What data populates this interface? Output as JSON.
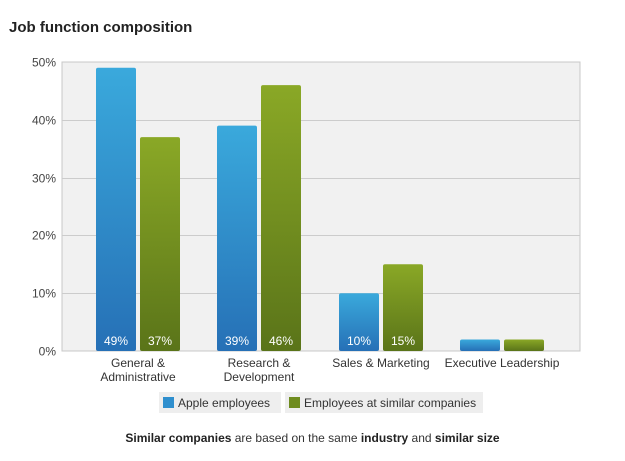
{
  "page_title": "Job function composition",
  "colors": {
    "apple_series": "#2f8fce",
    "similar_series": "#6f8c1f",
    "plot_background": "#f1f1f1",
    "grid": "#cccccc",
    "legend_background": "#eeeeee"
  },
  "chart_data": {
    "type": "bar",
    "title": "Job function composition",
    "categories": [
      [
        "General &",
        "Administrative"
      ],
      [
        "Research &",
        "Development"
      ],
      [
        "Sales & Marketing"
      ],
      [
        "Executive Leadership"
      ]
    ],
    "series": [
      {
        "name": "Apple employees",
        "values": [
          49,
          39,
          10,
          2
        ],
        "data_labels": [
          "49%",
          "39%",
          "10%",
          ""
        ]
      },
      {
        "name": "Employees at similar companies",
        "values": [
          37,
          46,
          15,
          2
        ],
        "data_labels": [
          "37%",
          "46%",
          "15%",
          ""
        ]
      }
    ],
    "y_ticks": [
      "0%",
      "10%",
      "20%",
      "30%",
      "40%",
      "50%"
    ],
    "y_tick_values": [
      0,
      10,
      20,
      30,
      40,
      50
    ],
    "ylim": [
      0,
      50
    ],
    "unit": "%",
    "grid": true,
    "legend_position": "bottom"
  },
  "footnote": {
    "part1": "Similar companies",
    "part2": " are based on the same ",
    "part3": "industry",
    "part4": " and ",
    "part5": "similar size"
  }
}
